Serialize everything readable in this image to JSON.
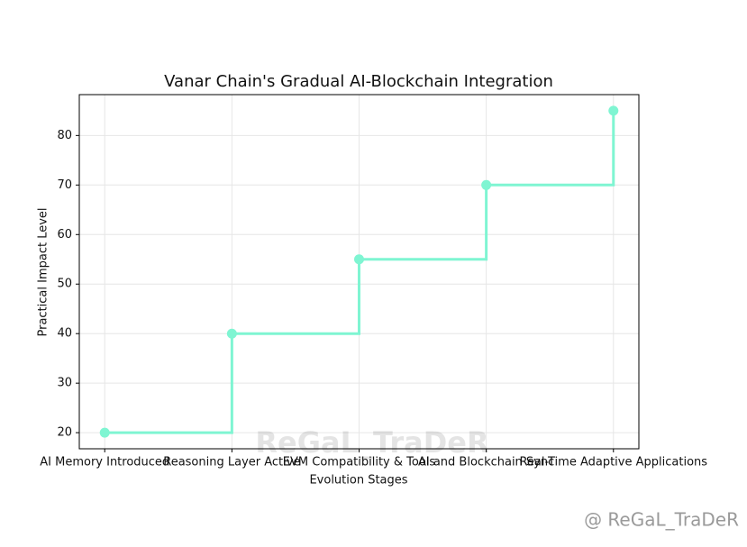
{
  "chart_data": {
    "type": "step",
    "title": "Vanar Chain's Gradual AI-Blockchain Integration",
    "x_label": "Evolution Stages",
    "y_label": "Practical Impact Level",
    "categories": [
      "AI Memory Introduced",
      "Reasoning Layer Active",
      "EVM Compatibility & Tools",
      "AI and Blockchain Sync",
      "Real-Time Adaptive Applications"
    ],
    "values": [
      20,
      40,
      55,
      70,
      85
    ],
    "color": "#7ff5d2",
    "ylim": [
      16.75,
      88.25
    ],
    "yticks": [
      20,
      30,
      40,
      50,
      60,
      70,
      80
    ],
    "grid": true,
    "watermark": "ReGaL_TraDeR",
    "corner_watermark": "@ ReGaL_TraDeR"
  }
}
